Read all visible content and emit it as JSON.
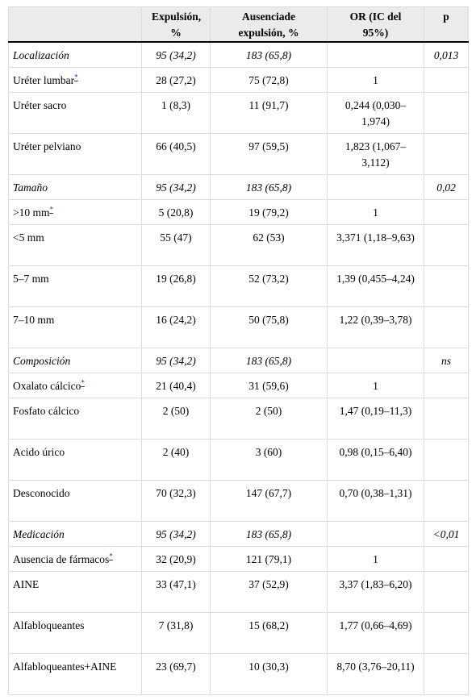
{
  "table": {
    "header": [
      "Expulsión, %",
      "Ausenciade expulsión, %",
      "OR (IC del 95%)",
      "p"
    ],
    "rows": [
      {
        "label": "Localización",
        "section": true,
        "expulsion": "95 (34,2)",
        "ausencia": "183 (65,8)",
        "p": "0,013"
      },
      {
        "label": "Uréter lumbar",
        "mark": "*",
        "expulsion": "28 (27,2)",
        "ausencia": "75 (72,8)",
        "or": "1"
      },
      {
        "label": "Uréter sacro",
        "expulsion": "1 (8,3)",
        "ausencia": "11 (91,7)",
        "or": "0,244 (0,030–1,974)"
      },
      {
        "label": "Uréter pelviano",
        "expulsion": "66 (40,5)",
        "ausencia": "97 (59,5)",
        "or": "1,823 (1,067–3,112)"
      },
      {
        "label": "Tamaño",
        "section": true,
        "expulsion": "95 (34,2)",
        "ausencia": "183 (65,8)",
        "p": "0,02"
      },
      {
        "label": ">10 mm",
        "mark": "*",
        "expulsion": "5 (20,8)",
        "ausencia": "19 (79,2)",
        "or": "1"
      },
      {
        "label": "<5 mm",
        "expulsion": "55 (47)",
        "ausencia": "62 (53)",
        "or": "3,371 (1,18–9,63)"
      },
      {
        "label": "5–7 mm",
        "expulsion": "19 (26,8)",
        "ausencia": "52 (73,2)",
        "or": "1,39 (0,455–4,24)"
      },
      {
        "label": "7–10 mm",
        "expulsion": "16 (24,2)",
        "ausencia": "50 (75,8)",
        "or": "1,22 (0,39–3,78)"
      },
      {
        "label": "Composición",
        "section": true,
        "expulsion": "95 (34,2)",
        "ausencia": "183 (65,8)",
        "p": "ns"
      },
      {
        "label": "Oxalato cálcico",
        "mark": "*",
        "expulsion": "21 (40,4)",
        "ausencia": "31 (59,6)",
        "or": "1"
      },
      {
        "label": "Fosfato cálcico",
        "expulsion": "2 (50)",
        "ausencia": "2 (50)",
        "or": "1,47 (0,19–11,3)"
      },
      {
        "label": "Acido úrico",
        "expulsion": "2 (40)",
        "ausencia": "3 (60)",
        "or": "0,98 (0,15–6,40)"
      },
      {
        "label": "Desconocido",
        "expulsion": "70 (32,3)",
        "ausencia": "147 (67,7)",
        "or": "0,70 (0,38–1,31)"
      },
      {
        "label": "Medicación",
        "section": true,
        "expulsion": "95 (34,2)",
        "ausencia": "183 (65,8)",
        "p": "<0,01"
      },
      {
        "label": "Ausencia de fármacos",
        "mark": "*",
        "expulsion": "32 (20,9)",
        "ausencia": "121 (79,1)",
        "or": "1"
      },
      {
        "label": "AINE",
        "expulsion": "33 (47,1)",
        "ausencia": "37 (52,9)",
        "or": "3,37 (1,83–6,20)"
      },
      {
        "label": "Alfabloqueantes",
        "expulsion": "7 (31,8)",
        "ausencia": "15 (68,2)",
        "or": "1,77 (0,66–4,69)"
      },
      {
        "label": "Alfabloqueantes+AINE",
        "expulsion": "23 (69,7)",
        "ausencia": "10 (30,3)",
        "or": "8,70 (3,76–20,11)"
      }
    ]
  }
}
